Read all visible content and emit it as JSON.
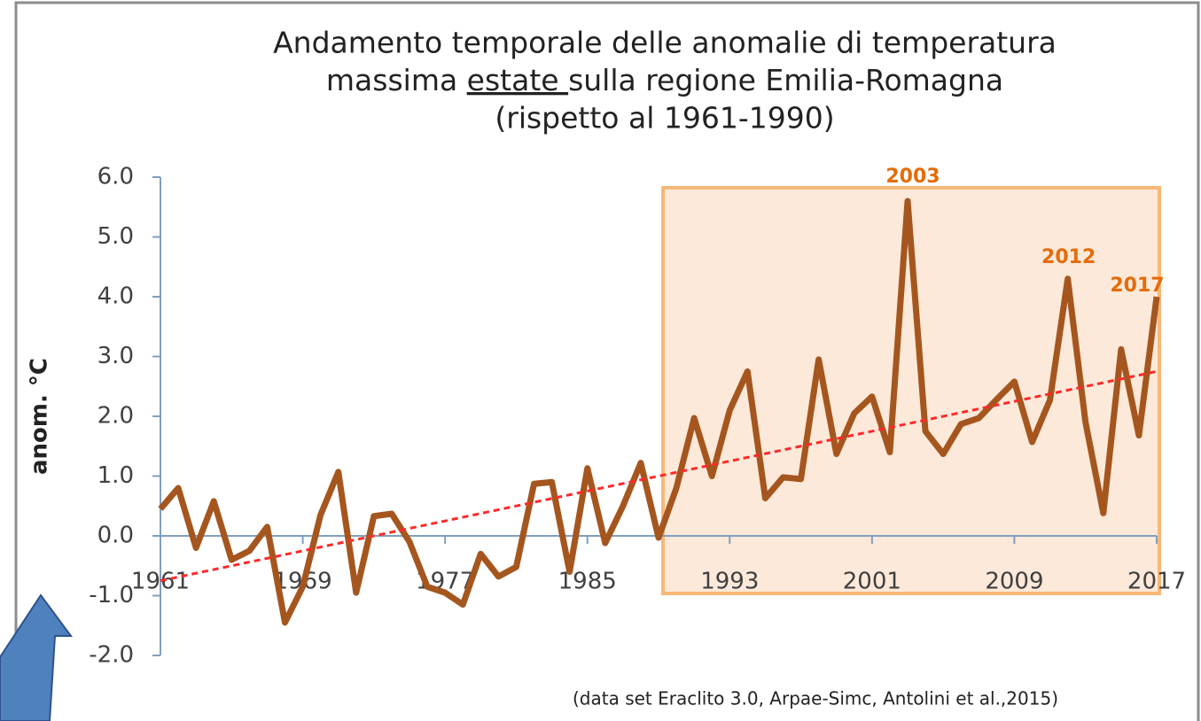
{
  "chart_data": {
    "type": "line",
    "title": [
      "Andamento temporale delle anomalie di temperatura",
      [
        "massima ",
        "estate ",
        "sulla regione Emilia-Romagna"
      ],
      "(rispetto al 1961-1990)"
    ],
    "ylabel": "anom. °C",
    "note": "(data set Eraclito 3.0, Arpae-Simc, Antolini et al.,2015)",
    "x": [
      1961,
      1962,
      1963,
      1964,
      1965,
      1966,
      1967,
      1968,
      1969,
      1970,
      1971,
      1972,
      1973,
      1974,
      1975,
      1976,
      1977,
      1978,
      1979,
      1980,
      1981,
      1982,
      1983,
      1984,
      1985,
      1986,
      1987,
      1988,
      1989,
      1990,
      1991,
      1992,
      1993,
      1994,
      1995,
      1996,
      1997,
      1998,
      1999,
      2000,
      2001,
      2002,
      2003,
      2004,
      2005,
      2006,
      2007,
      2008,
      2009,
      2010,
      2011,
      2012,
      2013,
      2014,
      2015,
      2016,
      2017
    ],
    "series": [
      {
        "color": "#a5561e",
        "values": [
          0.45,
          0.8,
          -0.2,
          0.58,
          -0.4,
          -0.25,
          0.15,
          -1.45,
          -0.85,
          0.35,
          1.07,
          -0.95,
          0.33,
          0.37,
          -0.1,
          -0.85,
          -0.95,
          -1.15,
          -0.3,
          -0.68,
          -0.52,
          0.87,
          0.9,
          -0.6,
          1.13,
          -0.12,
          0.5,
          1.22,
          -0.03,
          0.8,
          1.97,
          1.0,
          2.1,
          2.75,
          0.63,
          0.98,
          0.95,
          2.95,
          1.37,
          2.05,
          2.33,
          1.4,
          5.6,
          1.75,
          1.37,
          1.87,
          1.97,
          2.28,
          2.58,
          1.57,
          2.27,
          4.3,
          1.9,
          0.38,
          3.12,
          1.68,
          4.0
        ]
      }
    ],
    "trend": {
      "x": [
        1961,
        2017
      ],
      "values": [
        -0.75,
        2.75
      ],
      "color": "#ff2a2a"
    },
    "annotations": [
      {
        "text": "2003",
        "x": 2003
      },
      {
        "text": "2012",
        "x": 2012
      },
      {
        "text": "2017",
        "x": 2017
      }
    ],
    "annotation_color": "#e46c0a",
    "xlim": [
      1961,
      2017
    ],
    "xticks": [
      1961,
      1969,
      1977,
      1985,
      1993,
      2001,
      2009,
      2017
    ],
    "ylim": [
      -2,
      6
    ],
    "yticks": [
      {
        "value": -2,
        "label": "-2.0"
      },
      {
        "value": -1,
        "label": "-1.0"
      },
      {
        "value": 0,
        "label": "0.0"
      },
      {
        "value": 1,
        "label": "1.0"
      },
      {
        "value": 2,
        "label": "2.0"
      },
      {
        "value": 3,
        "label": "3.0"
      },
      {
        "value": 4,
        "label": "4.0"
      },
      {
        "value": 5,
        "label": "5.0"
      },
      {
        "value": 6,
        "label": "6.0"
      }
    ],
    "grid": false
  }
}
